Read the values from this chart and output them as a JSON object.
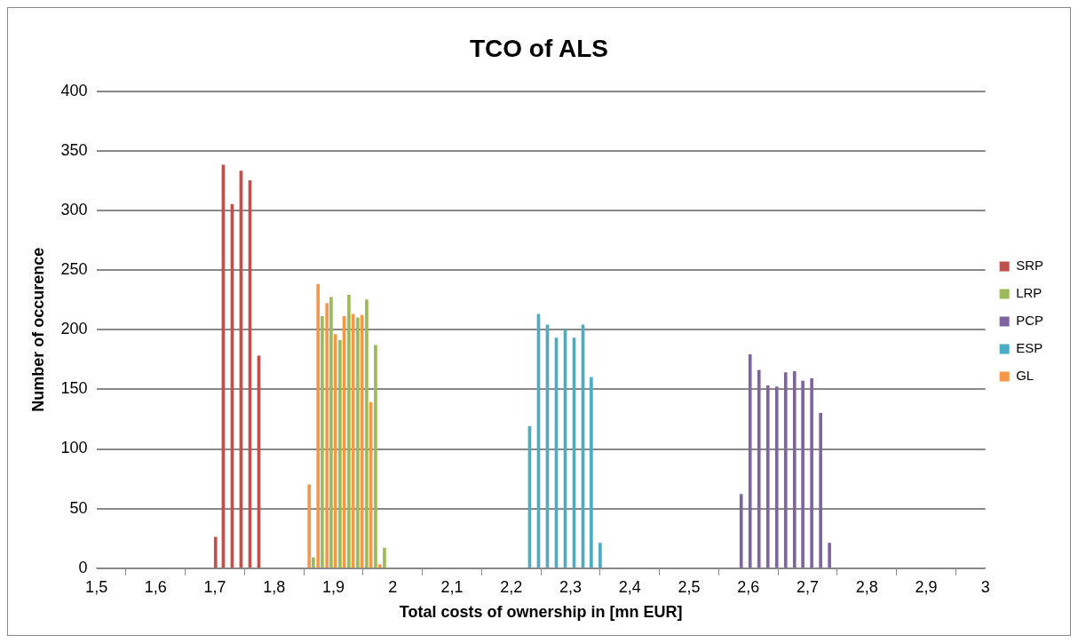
{
  "chart_data": {
    "type": "bar",
    "title": "TCO of ALS",
    "xlabel": "Total costs of ownership in [mn EUR]",
    "ylabel": "Number of occurence",
    "series": [
      {
        "name": "SRP",
        "color": "#c0504d",
        "x": [
          1.701,
          1.714,
          1.729,
          1.744,
          1.759,
          1.774
        ],
        "values": [
          26,
          338,
          305,
          333,
          325,
          178
        ]
      },
      {
        "name": "LRP",
        "color": "#9bbb59",
        "x": [
          1.866,
          1.881,
          1.896,
          1.911,
          1.926,
          1.941,
          1.956,
          1.971,
          1.986
        ],
        "values": [
          9,
          211,
          227,
          191,
          229,
          210,
          225,
          187,
          17
        ]
      },
      {
        "name": "PCP",
        "color": "#8064a2",
        "x": [
          2.588,
          2.603,
          2.618,
          2.633,
          2.648,
          2.663,
          2.678,
          2.692,
          2.707,
          2.722,
          2.737
        ],
        "values": [
          62,
          179,
          166,
          153,
          152,
          164,
          165,
          157,
          159,
          130,
          21
        ]
      },
      {
        "name": "ESP",
        "color": "#4bacc6",
        "x": [
          2.231,
          2.246,
          2.261,
          2.276,
          2.291,
          2.306,
          2.321,
          2.335,
          2.35
        ],
        "values": [
          119,
          213,
          204,
          193,
          200,
          193,
          204,
          160,
          21
        ]
      },
      {
        "name": "GL",
        "color": "#f79646",
        "x": [
          1.859,
          1.874,
          1.889,
          1.903,
          1.918,
          1.933,
          1.948,
          1.963,
          1.978
        ],
        "values": [
          70,
          238,
          222,
          196,
          211,
          213,
          212,
          139,
          3
        ]
      }
    ],
    "xlim": [
      1.5,
      3
    ],
    "xticks": [
      {
        "value": 1.5,
        "label": "1,5"
      },
      {
        "value": 1.6,
        "label": "1,6"
      },
      {
        "value": 1.7,
        "label": "1,7"
      },
      {
        "value": 1.8,
        "label": "1,8"
      },
      {
        "value": 1.9,
        "label": "1,9"
      },
      {
        "value": 2,
        "label": "2"
      },
      {
        "value": 2.1,
        "label": "2,1"
      },
      {
        "value": 2.2,
        "label": "2,2"
      },
      {
        "value": 2.3,
        "label": "2,3"
      },
      {
        "value": 2.4,
        "label": "2,4"
      },
      {
        "value": 2.5,
        "label": "2,5"
      },
      {
        "value": 2.6,
        "label": "2,6"
      },
      {
        "value": 2.7,
        "label": "2,7"
      },
      {
        "value": 2.8,
        "label": "2,8"
      },
      {
        "value": 2.9,
        "label": "2,9"
      },
      {
        "value": 3,
        "label": "3"
      }
    ],
    "ylim": [
      0,
      400
    ],
    "yticks": [
      0,
      50,
      100,
      150,
      200,
      250,
      300,
      350,
      400
    ],
    "grid": "y",
    "legend": "right"
  }
}
